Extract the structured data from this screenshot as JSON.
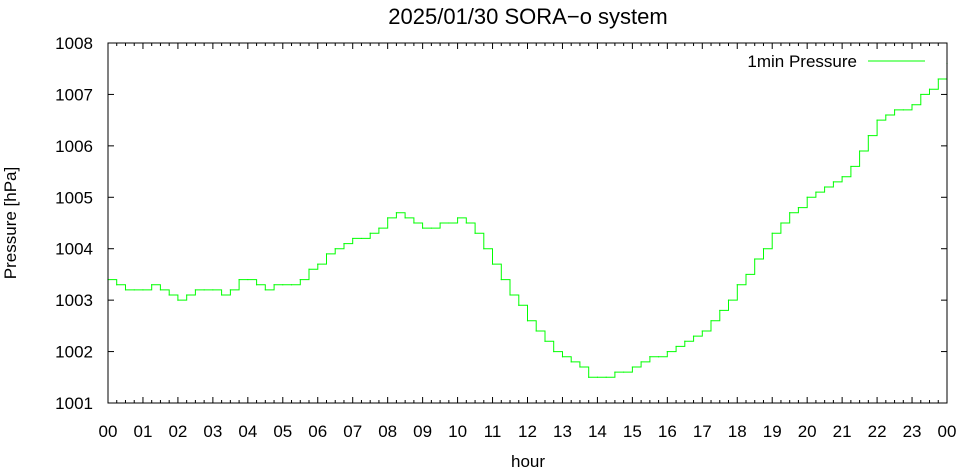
{
  "chart_data": {
    "type": "line",
    "title": "2025/01/30 SORA−o system",
    "xlabel": "hour",
    "ylabel": "Pressure [hPa]",
    "xlim": [
      0,
      24
    ],
    "ylim": [
      1001,
      1008
    ],
    "x_ticks": [
      0,
      1,
      2,
      3,
      4,
      5,
      6,
      7,
      8,
      9,
      10,
      11,
      12,
      13,
      14,
      15,
      16,
      17,
      18,
      19,
      20,
      21,
      22,
      23,
      24
    ],
    "x_tick_labels": [
      "00",
      "01",
      "02",
      "03",
      "04",
      "05",
      "06",
      "07",
      "08",
      "09",
      "10",
      "11",
      "12",
      "13",
      "14",
      "15",
      "16",
      "17",
      "18",
      "19",
      "20",
      "21",
      "22",
      "23",
      "00"
    ],
    "y_ticks": [
      1001,
      1002,
      1003,
      1004,
      1005,
      1006,
      1007,
      1008
    ],
    "y_tick_labels": [
      "1001",
      "1002",
      "1003",
      "1004",
      "1005",
      "1006",
      "1007",
      "1008"
    ],
    "grid": false,
    "legend_position": "top-right",
    "series": [
      {
        "name": "1min Pressure",
        "color": "#00ff00",
        "x": [
          0,
          0.25,
          0.5,
          0.75,
          1.0,
          1.25,
          1.5,
          1.75,
          2.0,
          2.25,
          2.5,
          2.75,
          3.0,
          3.25,
          3.5,
          3.75,
          4.0,
          4.25,
          4.5,
          4.75,
          5.0,
          5.25,
          5.5,
          5.75,
          6.0,
          6.25,
          6.5,
          6.75,
          7.0,
          7.25,
          7.5,
          7.75,
          8.0,
          8.25,
          8.5,
          8.75,
          9.0,
          9.25,
          9.5,
          9.75,
          10.0,
          10.25,
          10.5,
          10.75,
          11.0,
          11.25,
          11.5,
          11.75,
          12.0,
          12.25,
          12.5,
          12.75,
          13.0,
          13.25,
          13.5,
          13.75,
          14.0,
          14.25,
          14.5,
          14.75,
          15.0,
          15.25,
          15.5,
          15.75,
          16.0,
          16.25,
          16.5,
          16.75,
          17.0,
          17.25,
          17.5,
          17.75,
          18.0,
          18.25,
          18.5,
          18.75,
          19.0,
          19.25,
          19.5,
          19.75,
          20.0,
          20.25,
          20.5,
          20.75,
          21.0,
          21.25,
          21.5,
          21.75,
          22.0,
          22.25,
          22.5,
          22.75,
          23.0,
          23.25,
          23.5,
          23.75,
          24.0
        ],
        "y": [
          1003.4,
          1003.3,
          1003.2,
          1003.2,
          1003.2,
          1003.3,
          1003.2,
          1003.1,
          1003.0,
          1003.1,
          1003.2,
          1003.2,
          1003.2,
          1003.1,
          1003.2,
          1003.4,
          1003.4,
          1003.3,
          1003.2,
          1003.3,
          1003.3,
          1003.3,
          1003.4,
          1003.6,
          1003.7,
          1003.9,
          1004.0,
          1004.1,
          1004.2,
          1004.2,
          1004.3,
          1004.4,
          1004.6,
          1004.7,
          1004.6,
          1004.5,
          1004.4,
          1004.4,
          1004.5,
          1004.5,
          1004.6,
          1004.5,
          1004.3,
          1004.0,
          1003.7,
          1003.4,
          1003.1,
          1002.9,
          1002.6,
          1002.4,
          1002.2,
          1002.0,
          1001.9,
          1001.8,
          1001.7,
          1001.5,
          1001.5,
          1001.5,
          1001.6,
          1001.6,
          1001.7,
          1001.8,
          1001.9,
          1001.9,
          1002.0,
          1002.1,
          1002.2,
          1002.3,
          1002.4,
          1002.6,
          1002.8,
          1003.0,
          1003.3,
          1003.5,
          1003.8,
          1004.0,
          1004.3,
          1004.5,
          1004.7,
          1004.8,
          1005.0,
          1005.1,
          1005.2,
          1005.3,
          1005.4,
          1005.6,
          1005.9,
          1006.2,
          1006.5,
          1006.6,
          1006.7,
          1006.7,
          1006.8,
          1007.0,
          1007.1,
          1007.3,
          1007.6
        ]
      }
    ]
  }
}
